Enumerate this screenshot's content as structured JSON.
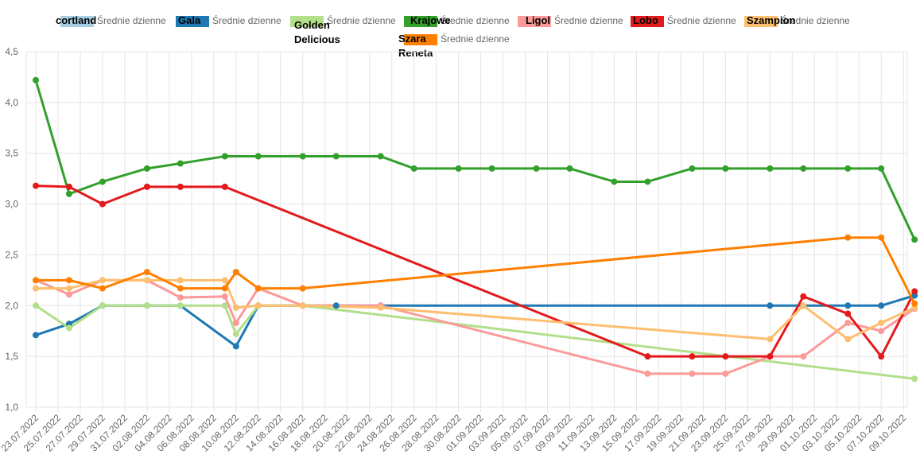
{
  "chart_data": {
    "type": "line",
    "ylim": [
      1.0,
      4.5
    ],
    "yticks": [
      "1,0",
      "1,5",
      "2,0",
      "2,5",
      "3,0",
      "3,5",
      "4,0",
      "4,5"
    ],
    "xticks": [
      "23.07.2022",
      "25.07.2022",
      "27.07.2022",
      "29.07.2022",
      "31.07.2022",
      "02.08.2022",
      "04.08.2022",
      "06.08.2022",
      "08.08.2022",
      "10.08.2022",
      "12.08.2022",
      "14.08.2022",
      "16.08.2022",
      "18.08.2022",
      "20.08.2022",
      "22.08.2022",
      "24.08.2022",
      "26.08.2022",
      "28.08.2022",
      "30.08.2022",
      "01.09.2022",
      "03.09.2022",
      "05.09.2022",
      "07.09.2022",
      "09.09.2022",
      "11.09.2022",
      "13.09.2022",
      "15.09.2022",
      "17.09.2022",
      "19.09.2022",
      "21.09.2022",
      "23.09.2022",
      "25.09.2022",
      "27.09.2022",
      "29.09.2022",
      "01.10.2022",
      "03.10.2022",
      "05.10.2022",
      "07.10.2022",
      "09.10.2022"
    ],
    "grid": true,
    "legend_position": "top",
    "series": [
      {
        "name": "cortland",
        "label": "Średnie dzienne",
        "color": "#a6cee3",
        "points": [
          [
            "10.10.2022",
            2.1
          ]
        ]
      },
      {
        "name": "Gala",
        "label": "Średnie dzienne",
        "color": "#1f78b4",
        "points": [
          [
            "23.07.2022",
            1.71
          ],
          [
            "26.07.2022",
            1.82
          ],
          [
            "29.07.2022",
            2.0
          ],
          [
            "02.08.2022",
            2.0
          ],
          [
            "05.08.2022",
            2.0
          ],
          [
            "10.08.2022",
            1.6
          ],
          [
            "12.08.2022",
            2.0
          ],
          [
            "16.08.2022",
            2.0
          ],
          [
            "19.08.2022",
            2.0
          ],
          [
            "23.08.2022",
            2.0
          ],
          [
            "27.09.2022",
            2.0
          ],
          [
            "30.09.2022",
            2.0
          ],
          [
            "04.10.2022",
            2.0
          ],
          [
            "07.10.2022",
            2.0
          ],
          [
            "10.10.2022",
            2.1
          ]
        ]
      },
      {
        "name": "Golden Delicious",
        "label": "Średnie dzienne",
        "color": "#b2df8a",
        "points": [
          [
            "23.07.2022",
            2.0
          ],
          [
            "26.07.2022",
            1.78
          ],
          [
            "29.07.2022",
            2.0
          ],
          [
            "02.08.2022",
            2.0
          ],
          [
            "05.08.2022",
            2.0
          ],
          [
            "09.08.2022",
            2.0
          ],
          [
            "10.08.2022",
            1.72
          ],
          [
            "12.08.2022",
            2.0
          ],
          [
            "16.08.2022",
            2.0
          ],
          [
            "10.10.2022",
            1.28
          ]
        ]
      },
      {
        "name": "Krajowe",
        "label": "Średnie dzienne",
        "color": "#33a02c",
        "points": [
          [
            "23.07.2022",
            4.22
          ],
          [
            "26.07.2022",
            3.1
          ],
          [
            "29.07.2022",
            3.22
          ],
          [
            "02.08.2022",
            3.35
          ],
          [
            "05.08.2022",
            3.4
          ],
          [
            "09.08.2022",
            3.47
          ],
          [
            "12.08.2022",
            3.47
          ],
          [
            "16.08.2022",
            3.47
          ],
          [
            "19.08.2022",
            3.47
          ],
          [
            "23.08.2022",
            3.47
          ],
          [
            "26.08.2022",
            3.35
          ],
          [
            "30.08.2022",
            3.35
          ],
          [
            "02.09.2022",
            3.35
          ],
          [
            "06.09.2022",
            3.35
          ],
          [
            "09.09.2022",
            3.35
          ],
          [
            "13.09.2022",
            3.22
          ],
          [
            "16.09.2022",
            3.22
          ],
          [
            "20.09.2022",
            3.35
          ],
          [
            "23.09.2022",
            3.35
          ],
          [
            "27.09.2022",
            3.35
          ],
          [
            "30.09.2022",
            3.35
          ],
          [
            "04.10.2022",
            3.35
          ],
          [
            "07.10.2022",
            3.35
          ],
          [
            "10.10.2022",
            2.65
          ]
        ]
      },
      {
        "name": "Ligol",
        "label": "Średnie dzienne",
        "color": "#fb9a99",
        "points": [
          [
            "23.07.2022",
            2.25
          ],
          [
            "26.07.2022",
            2.11
          ],
          [
            "29.07.2022",
            2.25
          ],
          [
            "02.08.2022",
            2.25
          ],
          [
            "05.08.2022",
            2.08
          ],
          [
            "09.08.2022",
            2.09
          ],
          [
            "10.08.2022",
            1.83
          ],
          [
            "12.08.2022",
            2.17
          ],
          [
            "16.08.2022",
            2.0
          ],
          [
            "23.08.2022",
            2.0
          ],
          [
            "16.09.2022",
            1.33
          ],
          [
            "20.09.2022",
            1.33
          ],
          [
            "23.09.2022",
            1.33
          ],
          [
            "27.09.2022",
            1.5
          ],
          [
            "30.09.2022",
            1.5
          ],
          [
            "04.10.2022",
            1.83
          ],
          [
            "07.10.2022",
            1.75
          ],
          [
            "10.10.2022",
            1.97
          ]
        ]
      },
      {
        "name": "Lobo",
        "label": "Średnie dzienne",
        "color": "#e31a1c",
        "points": [
          [
            "23.07.2022",
            3.18
          ],
          [
            "26.07.2022",
            3.17
          ],
          [
            "29.07.2022",
            3.0
          ],
          [
            "02.08.2022",
            3.17
          ],
          [
            "05.08.2022",
            3.17
          ],
          [
            "09.08.2022",
            3.17
          ],
          [
            "16.09.2022",
            1.5
          ],
          [
            "20.09.2022",
            1.5
          ],
          [
            "23.09.2022",
            1.5
          ],
          [
            "27.09.2022",
            1.5
          ],
          [
            "30.09.2022",
            2.09
          ],
          [
            "04.10.2022",
            1.92
          ],
          [
            "07.10.2022",
            1.5
          ],
          [
            "10.10.2022",
            2.14
          ]
        ]
      },
      {
        "name": "Szampion",
        "label": "Średnie dzienne",
        "color": "#fdbf6f",
        "points": [
          [
            "23.07.2022",
            2.17
          ],
          [
            "26.07.2022",
            2.17
          ],
          [
            "29.07.2022",
            2.25
          ],
          [
            "02.08.2022",
            2.25
          ],
          [
            "05.08.2022",
            2.25
          ],
          [
            "09.08.2022",
            2.25
          ],
          [
            "10.08.2022",
            1.98
          ],
          [
            "12.08.2022",
            2.0
          ],
          [
            "16.08.2022",
            2.0
          ],
          [
            "23.08.2022",
            1.98
          ],
          [
            "27.09.2022",
            1.67
          ],
          [
            "30.09.2022",
            2.0
          ],
          [
            "04.10.2022",
            1.67
          ],
          [
            "07.10.2022",
            1.83
          ],
          [
            "10.10.2022",
            1.98
          ]
        ]
      },
      {
        "name": "Szara Reneta",
        "label": "Średnie dzienne",
        "color": "#ff7f00",
        "points": [
          [
            "23.07.2022",
            2.25
          ],
          [
            "26.07.2022",
            2.25
          ],
          [
            "29.07.2022",
            2.17
          ],
          [
            "02.08.2022",
            2.33
          ],
          [
            "05.08.2022",
            2.17
          ],
          [
            "09.08.2022",
            2.17
          ],
          [
            "10.08.2022",
            2.33
          ],
          [
            "12.08.2022",
            2.17
          ],
          [
            "16.08.2022",
            2.17
          ],
          [
            "04.10.2022",
            2.67
          ],
          [
            "07.10.2022",
            2.67
          ],
          [
            "10.10.2022",
            2.02
          ]
        ]
      }
    ]
  }
}
